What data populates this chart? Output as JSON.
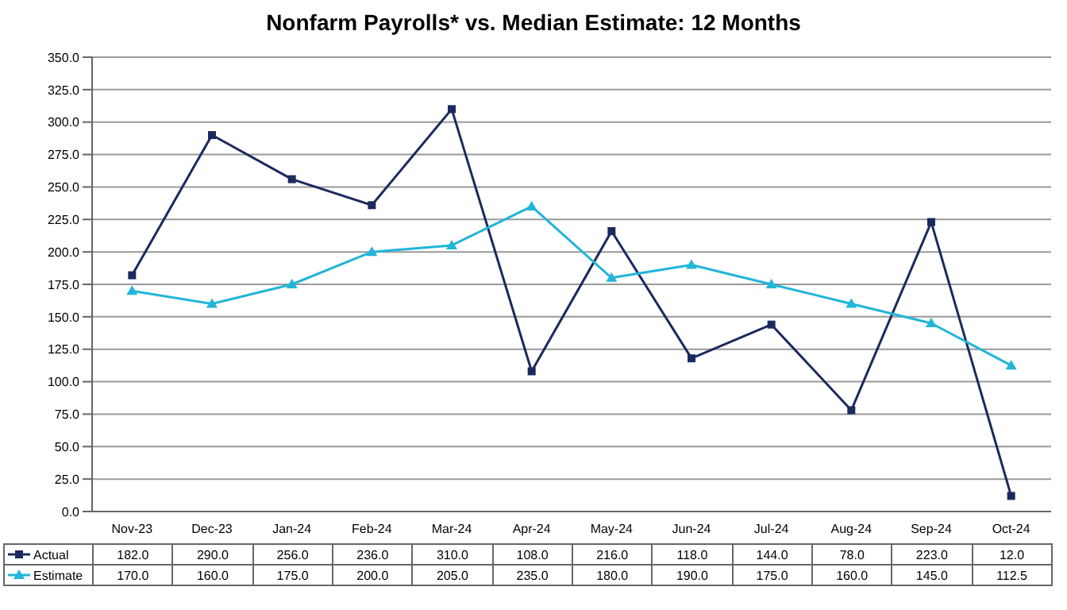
{
  "chart_data": {
    "type": "line",
    "title": "Nonfarm Payrolls* vs. Median Estimate: 12 Months",
    "categories": [
      "Nov-23",
      "Dec-23",
      "Jan-24",
      "Feb-24",
      "Mar-24",
      "Apr-24",
      "May-24",
      "Jun-24",
      "Jul-24",
      "Aug-24",
      "Sep-24",
      "Oct-24"
    ],
    "series": [
      {
        "name": "Actual",
        "color": "#1b2a5e",
        "marker": "square",
        "values": [
          182,
          290,
          256,
          236,
          310,
          108,
          216,
          118,
          144,
          78,
          223,
          12
        ],
        "value_labels": [
          "182.0",
          "290.0",
          "256.0",
          "236.0",
          "310.0",
          "108.0",
          "216.0",
          "118.0",
          "144.0",
          "78.0",
          "223.0",
          "12.0"
        ]
      },
      {
        "name": "Estimate",
        "color": "#22b5d8",
        "marker": "triangle",
        "values": [
          170,
          160,
          175,
          200,
          205,
          235,
          180,
          190,
          175,
          160,
          145,
          112.5
        ],
        "value_labels": [
          "170.0",
          "160.0",
          "175.0",
          "200.0",
          "205.0",
          "235.0",
          "180.0",
          "190.0",
          "175.0",
          "160.0",
          "145.0",
          "112.5"
        ]
      }
    ],
    "ylim": [
      0,
      350
    ],
    "yticks": [
      {
        "value": 0,
        "label": "0.0"
      },
      {
        "value": 25,
        "label": "25.0"
      },
      {
        "value": 50,
        "label": "50.0"
      },
      {
        "value": 75,
        "label": "75.0"
      },
      {
        "value": 100,
        "label": "100.0"
      },
      {
        "value": 125,
        "label": "125.0"
      },
      {
        "value": 150,
        "label": "150.0"
      },
      {
        "value": 175,
        "label": "175.0"
      },
      {
        "value": 200,
        "label": "200.0"
      },
      {
        "value": 225,
        "label": "225.0"
      },
      {
        "value": 250,
        "label": "250.0"
      },
      {
        "value": 275,
        "label": "275.0"
      },
      {
        "value": 300,
        "label": "300.0"
      },
      {
        "value": 325,
        "label": "325.0"
      },
      {
        "value": 350,
        "label": "350.0"
      }
    ],
    "grid": "y",
    "legend": "bottom"
  }
}
